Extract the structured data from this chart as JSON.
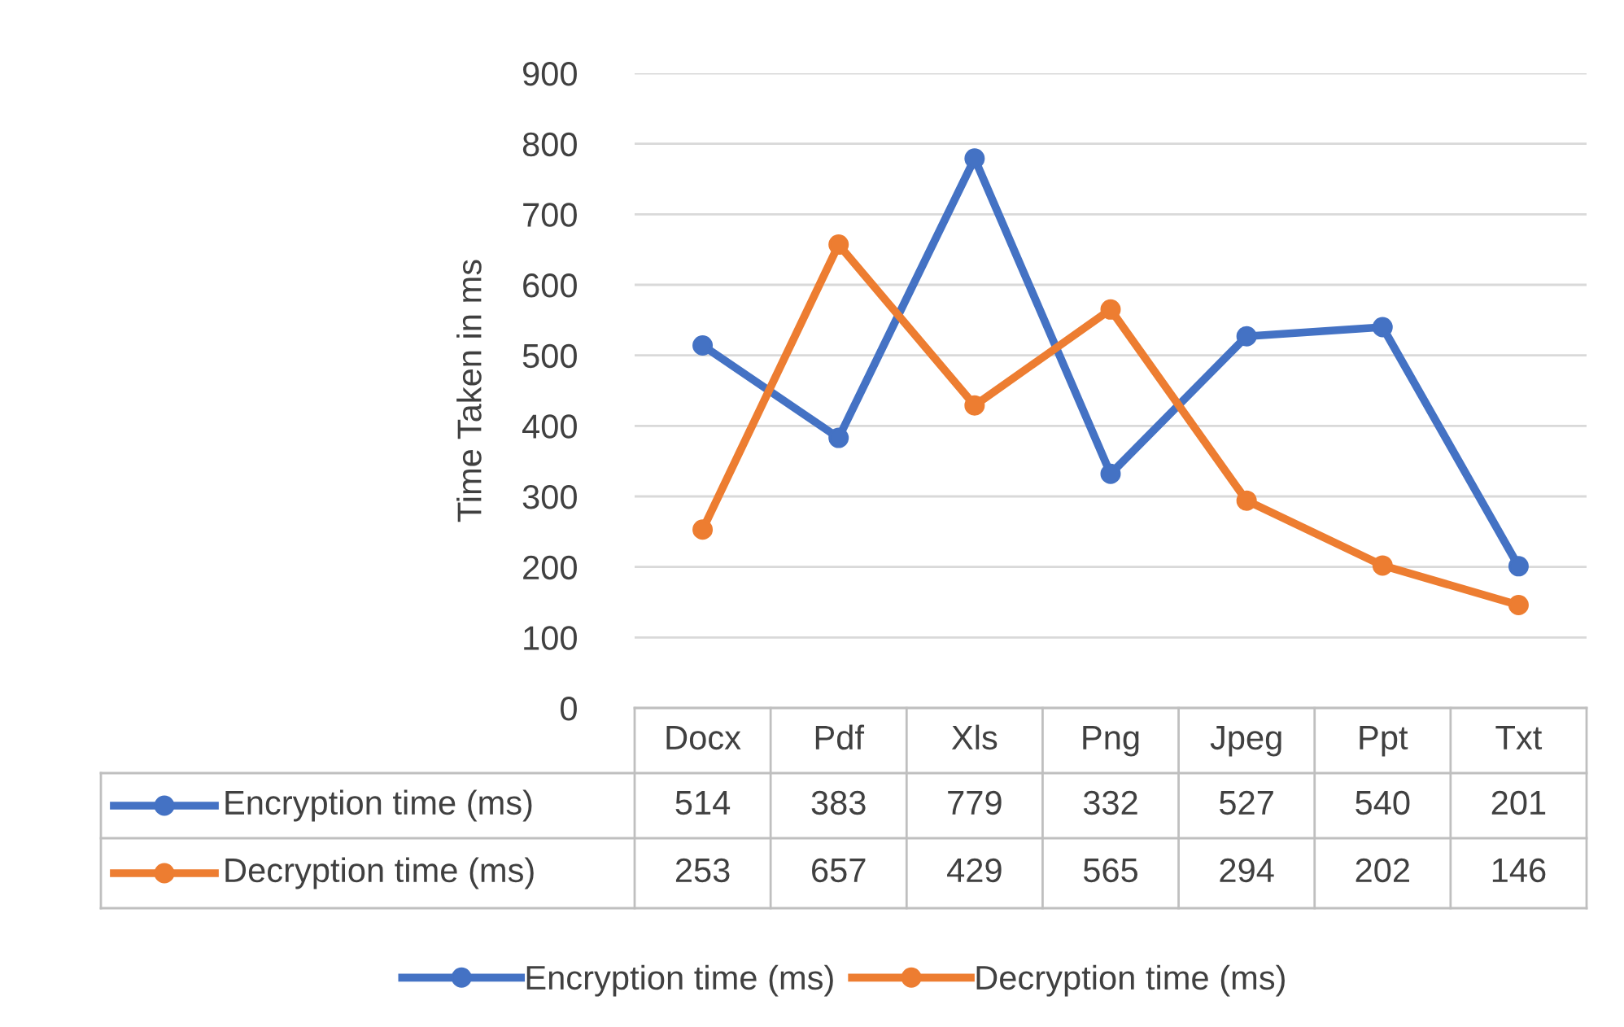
{
  "chart_data": {
    "type": "line",
    "ylabel": "Time Taken in ms",
    "categories": [
      "Docx",
      "Pdf",
      "Xls",
      "Png",
      "Jpeg",
      "Ppt",
      "Txt"
    ],
    "series": [
      {
        "name": "Encryption time (ms)",
        "color": "#4472c4",
        "values": [
          514,
          383,
          779,
          332,
          527,
          540,
          201
        ]
      },
      {
        "name": "Decryption time (ms)",
        "color": "#ed7d31",
        "values": [
          253,
          657,
          429,
          565,
          294,
          202,
          146
        ]
      }
    ],
    "ylim": [
      0,
      900
    ],
    "yticks": [
      0,
      100,
      200,
      300,
      400,
      500,
      600,
      700,
      800,
      900
    ],
    "grid": "y",
    "legend": "bottom",
    "marker": "circle",
    "line_style": "solid",
    "data_labels": true
  }
}
